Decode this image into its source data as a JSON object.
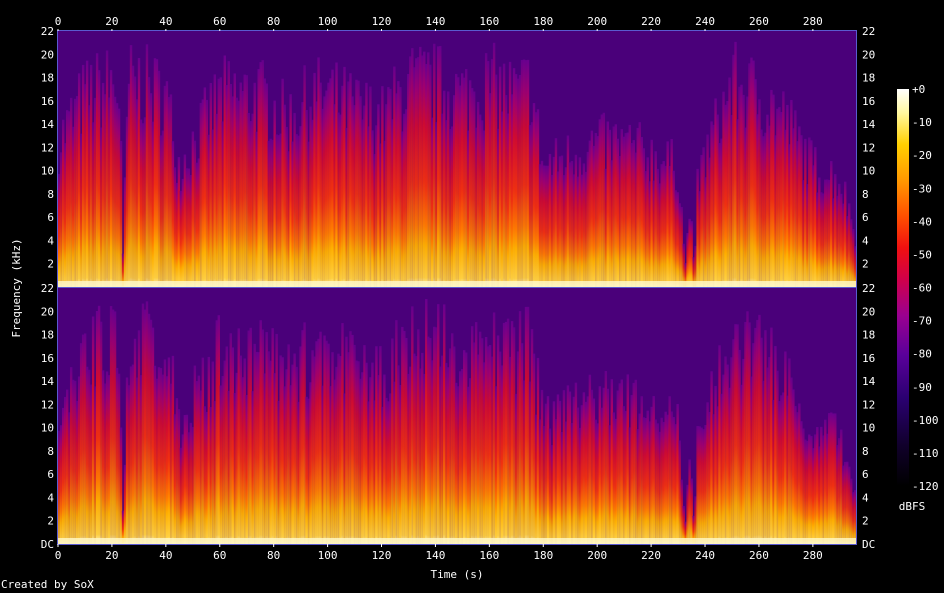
{
  "chart_data": {
    "type": "heatmap",
    "subtype": "spectrogram",
    "title": "",
    "xlabel": "Time (s)",
    "ylabel": "Frequency (kHz)",
    "colorbar_label": "dBFS",
    "xlim": [
      0,
      296
    ],
    "ylim": [
      0,
      22
    ],
    "x_ticks": [
      0,
      20,
      40,
      60,
      80,
      100,
      120,
      140,
      160,
      180,
      200,
      220,
      240,
      260,
      280
    ],
    "y_ticks": [
      2,
      4,
      6,
      8,
      10,
      12,
      14,
      16,
      18,
      20,
      22
    ],
    "y_ticks_upper_labels": [
      "2",
      "4",
      "6",
      "8",
      "10",
      "12",
      "14",
      "16",
      "18",
      "20",
      "22"
    ],
    "y_ticks_lower_labels": [
      "DC",
      "2",
      "4",
      "6",
      "8",
      "10",
      "12",
      "14",
      "16",
      "18",
      "20",
      "22"
    ],
    "y_ticks_lower_values": [
      0,
      2,
      4,
      6,
      8,
      10,
      12,
      14,
      16,
      18,
      20,
      22
    ],
    "colorbar_ticks": [
      "+0",
      "-10",
      "-20",
      "-30",
      "-40",
      "-50",
      "-60",
      "-70",
      "-80",
      "-90",
      "-100",
      "-110",
      "-120"
    ],
    "colorbar_range": [
      -120,
      0
    ],
    "channels": 2,
    "colormap": [
      "#000000",
      "#1a0040",
      "#400080",
      "#7a00a0",
      "#b0007a",
      "#e01030",
      "#ff4000",
      "#ff8a00",
      "#ffc800",
      "#fff070",
      "#ffffff"
    ],
    "energy_profile": {
      "description_free": true,
      "time": [
        0,
        5,
        10,
        20,
        23,
        24,
        26,
        30,
        40,
        45,
        60,
        75,
        85,
        95,
        100,
        110,
        120,
        130,
        140,
        150,
        160,
        170,
        175,
        180,
        190,
        200,
        210,
        220,
        230,
        233,
        234,
        236,
        237,
        240,
        250,
        260,
        270,
        280,
        290,
        294,
        296
      ],
      "rolloff_khz": [
        12,
        14,
        16,
        17,
        16,
        2,
        17,
        17,
        16,
        10,
        16,
        16,
        14,
        16,
        16,
        15,
        14,
        17,
        17,
        16,
        17,
        16,
        17,
        10,
        11,
        12,
        12,
        11,
        10,
        1,
        8,
        1,
        8,
        11,
        17,
        16,
        14,
        10,
        9,
        6,
        4
      ]
    }
  },
  "credit": "Created by SoX"
}
